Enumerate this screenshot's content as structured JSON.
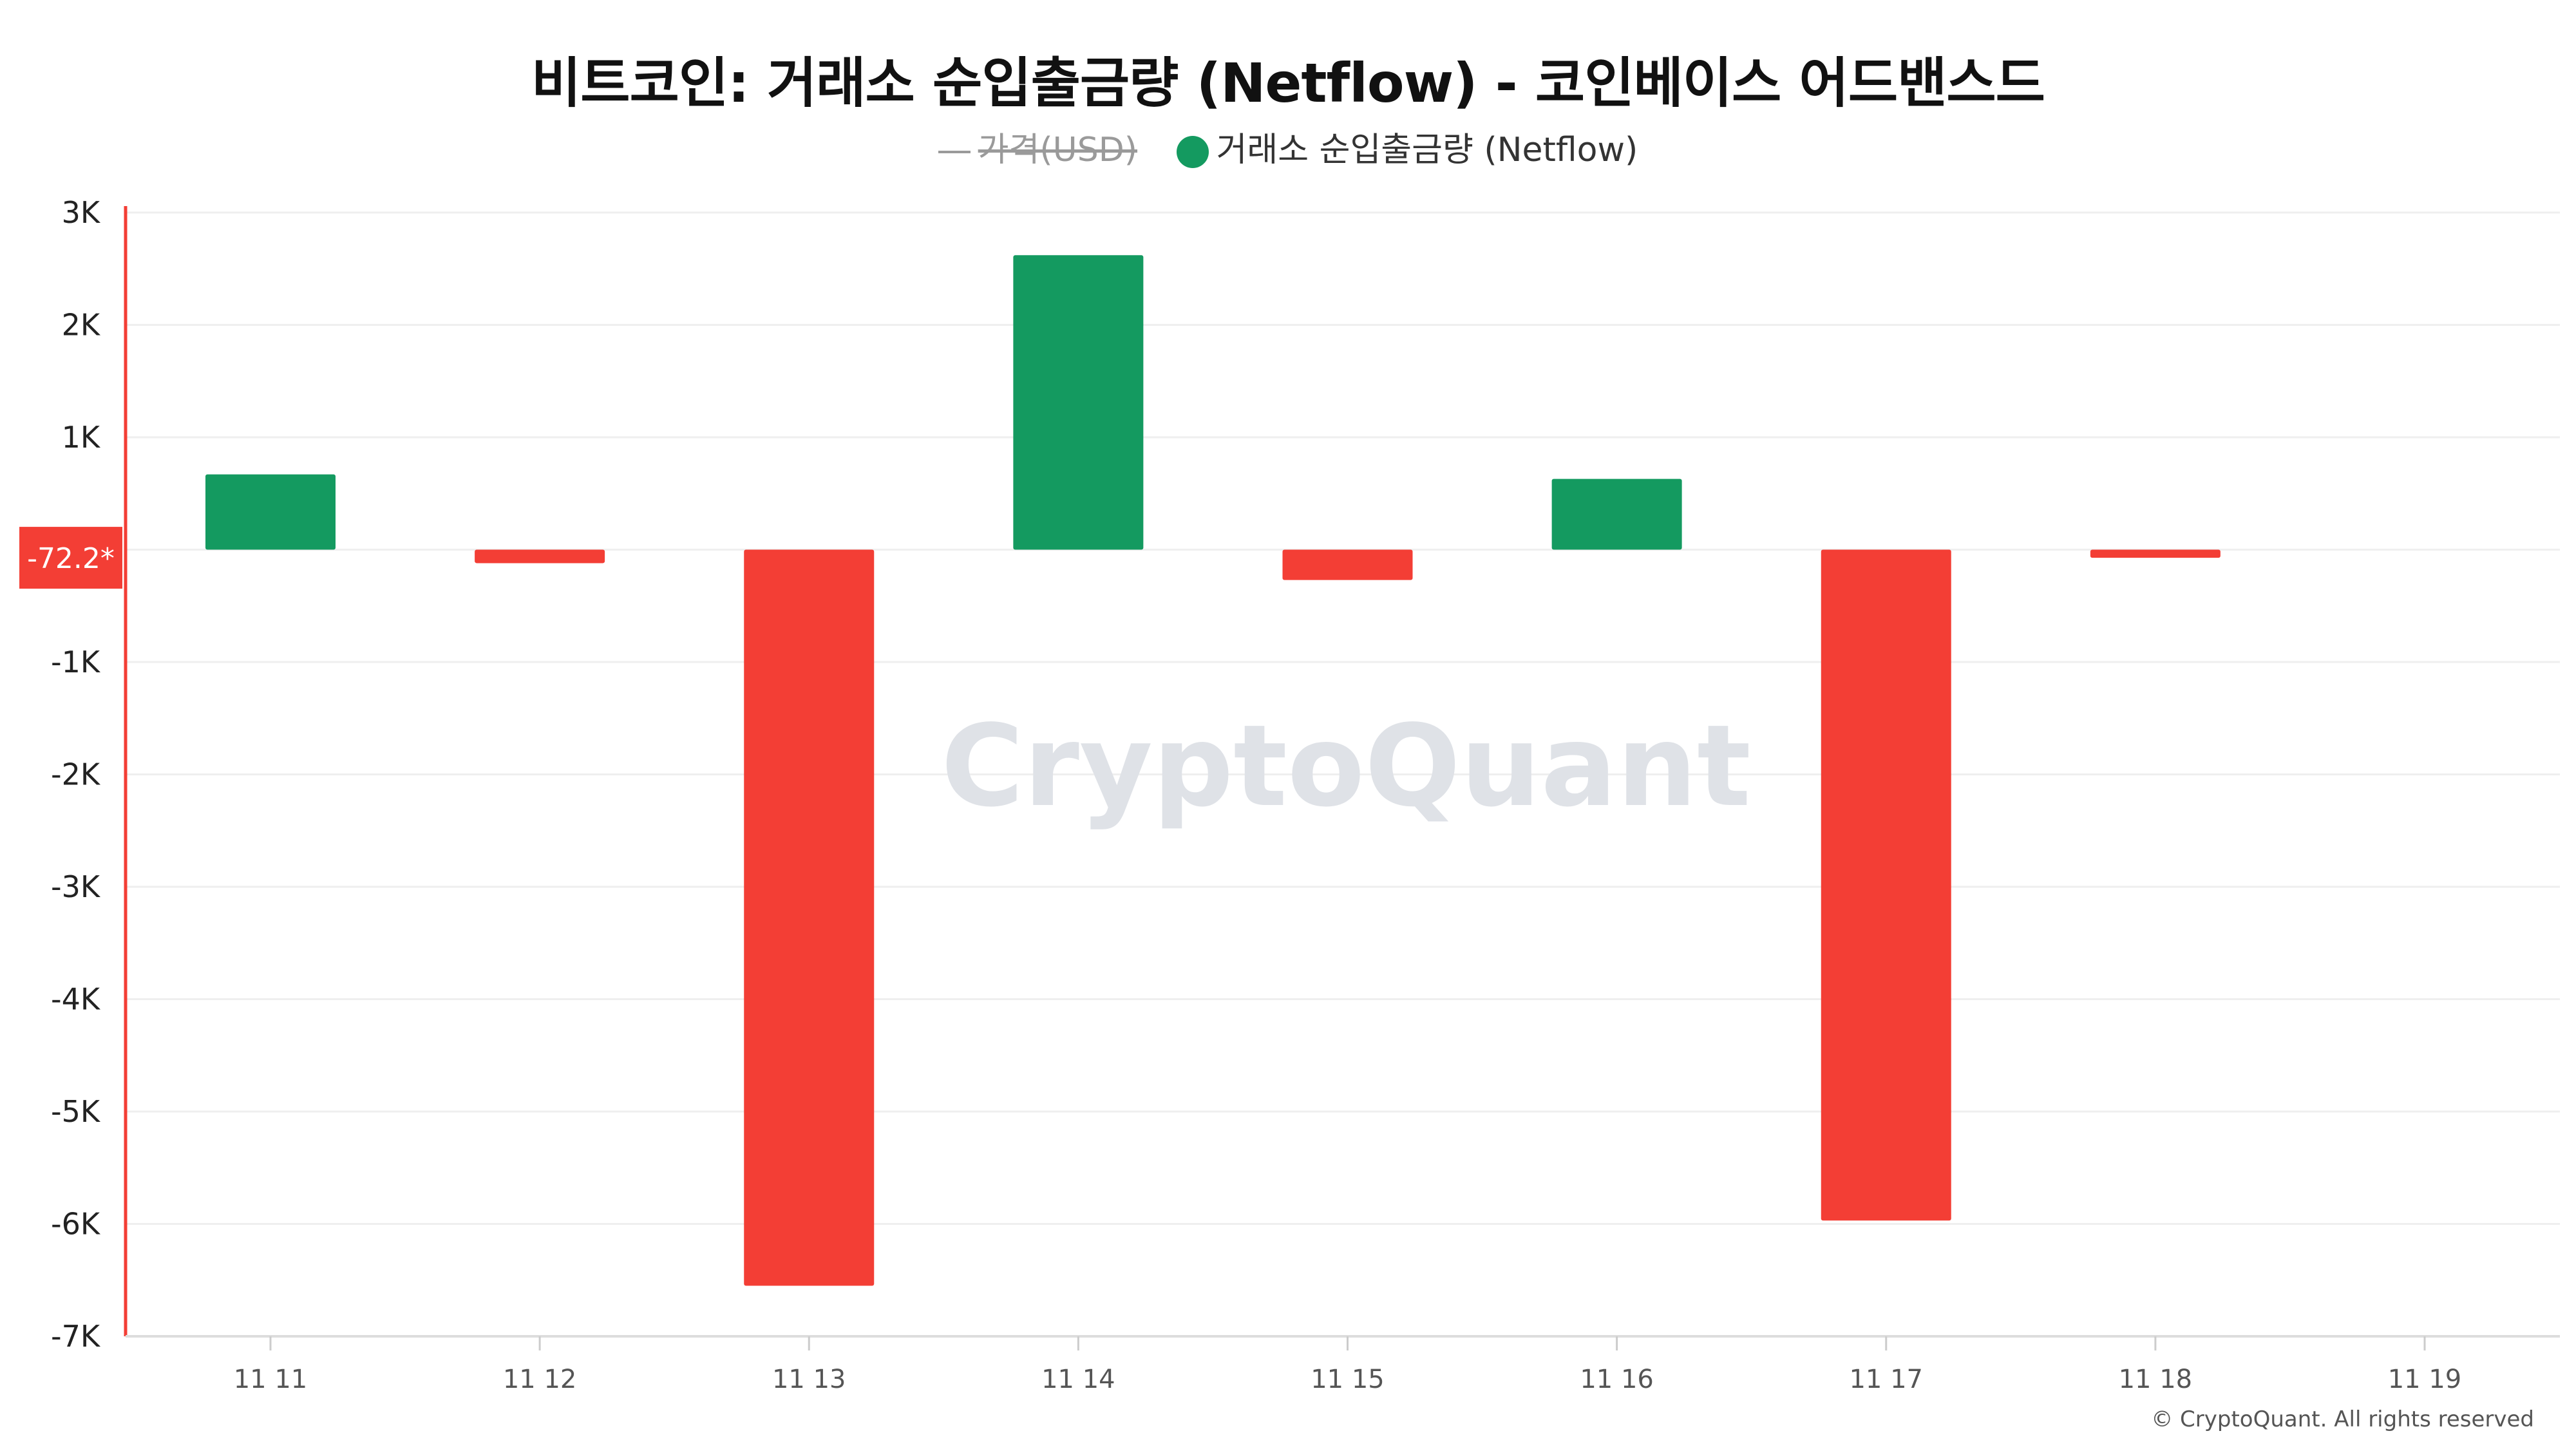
{
  "chart_data": {
    "type": "bar",
    "title": "비트코인: 거래소 순입출금량 (Netflow) - 코인베이스 어드밴스드",
    "legend": [
      {
        "label": "가격(USD)",
        "hidden": true,
        "color": "#9a9a9a"
      },
      {
        "label": "거래소 순입출금량 (Netflow)",
        "hidden": false,
        "color": "#149a60"
      }
    ],
    "categories": [
      "11 11",
      "11 12",
      "11 13",
      "11 14",
      "11 15",
      "11 16",
      "11 17",
      "11 18",
      "11 19"
    ],
    "series": [
      {
        "name": "거래소 순입출금량 (Netflow)",
        "values": [
          670,
          -120,
          -6550,
          2620,
          -270,
          630,
          -5970,
          -72.2,
          null
        ]
      }
    ],
    "ylim": [
      -7000,
      3000
    ],
    "yticks": [
      3000,
      2000,
      1000,
      -1000,
      -2000,
      -3000,
      -4000,
      -5000,
      -6000,
      -7000
    ],
    "ytick_labels": [
      "3K",
      "2K",
      "1K",
      "-1K",
      "-2K",
      "-3K",
      "-4K",
      "-5K",
      "-6K",
      "-7K"
    ],
    "current_value_label": "-72.2*",
    "current_value": -72.2,
    "positive_color": "#149a60",
    "negative_color": "#f33e35",
    "grid": true,
    "legend_placement": "top",
    "watermark": "CryptoQuant",
    "copyright": "© CryptoQuant. All rights reserved"
  }
}
